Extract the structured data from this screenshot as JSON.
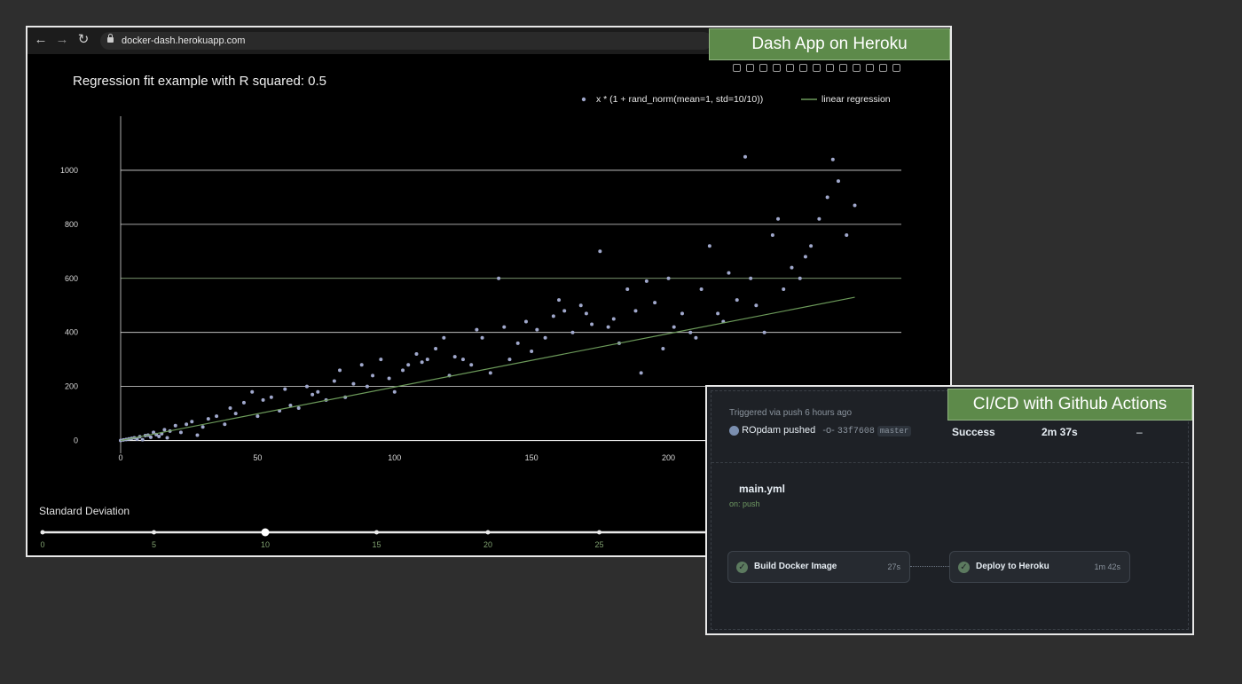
{
  "browser": {
    "url": "docker-dash.herokuapp.com",
    "badge": "Dash App on Heroku",
    "icons": [
      "back-arrow-icon",
      "forward-arrow-icon",
      "reload-icon",
      "lock-icon"
    ]
  },
  "chart_data": {
    "type": "scatter",
    "title": "Regression fit example with R squared: 0.5",
    "series": [
      {
        "name": "x * (1 + rand_norm(mean=1, std=10/10))",
        "mode": "markers",
        "color": "#a0a8cc",
        "x": [
          0,
          1,
          2,
          3,
          4,
          5,
          6,
          7,
          8,
          9,
          10,
          11,
          12,
          13,
          14,
          15,
          16,
          17,
          18,
          20,
          22,
          24,
          26,
          28,
          30,
          32,
          35,
          38,
          40,
          42,
          45,
          48,
          50,
          52,
          55,
          58,
          60,
          62,
          65,
          68,
          70,
          72,
          75,
          78,
          80,
          82,
          85,
          88,
          90,
          92,
          95,
          98,
          100,
          103,
          105,
          108,
          110,
          112,
          115,
          118,
          120,
          122,
          125,
          128,
          130,
          132,
          135,
          138,
          140,
          142,
          145,
          148,
          150,
          152,
          155,
          158,
          160,
          162,
          165,
          168,
          170,
          172,
          175,
          178,
          180,
          182,
          185,
          188,
          190,
          192,
          195,
          198,
          200,
          202,
          205,
          208,
          210,
          212,
          215,
          218,
          220,
          222,
          225,
          228,
          230,
          232,
          235,
          238,
          240,
          242,
          245,
          248,
          250,
          252,
          255,
          258,
          260,
          262,
          265,
          268
        ],
        "y": [
          0,
          2,
          4,
          6,
          8,
          10,
          5,
          14,
          3,
          18,
          20,
          12,
          30,
          22,
          15,
          25,
          40,
          10,
          35,
          55,
          30,
          60,
          70,
          20,
          50,
          80,
          90,
          60,
          120,
          100,
          140,
          180,
          90,
          150,
          160,
          110,
          190,
          130,
          120,
          200,
          170,
          180,
          150,
          220,
          260,
          160,
          210,
          280,
          200,
          240,
          300,
          230,
          180,
          260,
          280,
          320,
          290,
          300,
          340,
          380,
          240,
          310,
          300,
          280,
          410,
          380,
          250,
          600,
          420,
          300,
          360,
          440,
          330,
          410,
          380,
          460,
          520,
          480,
          400,
          500,
          470,
          430,
          700,
          420,
          450,
          360,
          560,
          480,
          250,
          590,
          510,
          340,
          600,
          420,
          470,
          400,
          380,
          560,
          720,
          470,
          440,
          620,
          520,
          1050,
          600,
          500,
          400,
          760,
          820,
          560,
          640,
          600,
          680,
          720,
          820,
          900,
          1040,
          960,
          760,
          870
        ]
      },
      {
        "name": "linear regression",
        "mode": "line",
        "color": "#6c9a5a",
        "x": [
          0,
          268
        ],
        "y": [
          0,
          530
        ]
      }
    ],
    "xticks": [
      0,
      50,
      100,
      150,
      200
    ],
    "yticks": [
      0,
      200,
      400,
      600,
      800,
      1000
    ],
    "xlim": [
      0,
      285
    ],
    "ylim": [
      -100,
      1200
    ],
    "grid": true,
    "legend": "top-right"
  },
  "modebar_icons": [
    "camera-icon",
    "zoom-icon",
    "pan-icon",
    "box-select-icon",
    "lasso-icon",
    "zoom-in-icon",
    "zoom-out-icon",
    "autoscale-icon",
    "home-icon",
    "spike-icon",
    "hover-closest-icon",
    "hover-compare-icon",
    "plotly-logo-icon"
  ],
  "slider": {
    "label": "Standard Deviation",
    "ticks": [
      "0",
      "5",
      "10",
      "15",
      "20",
      "25"
    ],
    "value": 10,
    "value_color": "#ffffff",
    "tick_color": "#7fa06f"
  },
  "cicd": {
    "badge": "CI/CD with Github Actions",
    "trigger": "Triggered via push 6 hours ago",
    "actor": "ROpdam",
    "pushed": "pushed",
    "commit": "33f7608",
    "branch": "master",
    "status": "Success",
    "duration": "2m 37s",
    "artifacts": "–",
    "workflow_file": "main.yml",
    "event": "on: push",
    "jobs": [
      {
        "name": "Build Docker Image",
        "time": "27s"
      },
      {
        "name": "Deploy to Heroku",
        "time": "1m 42s"
      }
    ]
  }
}
